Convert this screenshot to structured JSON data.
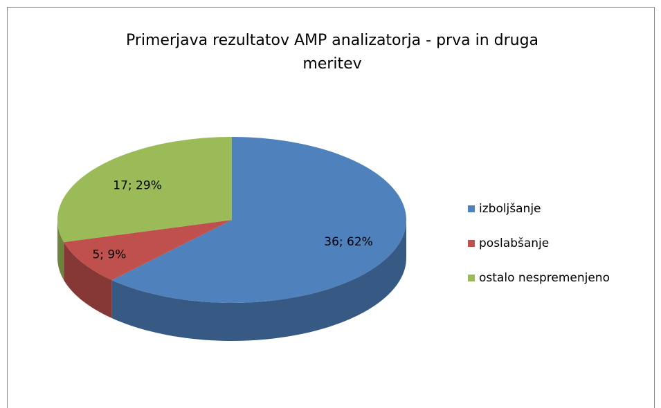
{
  "chart_data": {
    "type": "pie",
    "title": "Primerjava rezultatov AMP analizatorja - prva in druga meritev",
    "categories": [
      "izboljšanje",
      "poslabšanje",
      "ostalo nespremenjeno"
    ],
    "values": [
      36,
      5,
      17
    ],
    "value_labels": [
      "36; 62%",
      "5; 9%",
      "17; 29%"
    ],
    "colors": [
      "#4f81bd",
      "#c0504d",
      "#9bbb59"
    ],
    "legend": "right"
  }
}
